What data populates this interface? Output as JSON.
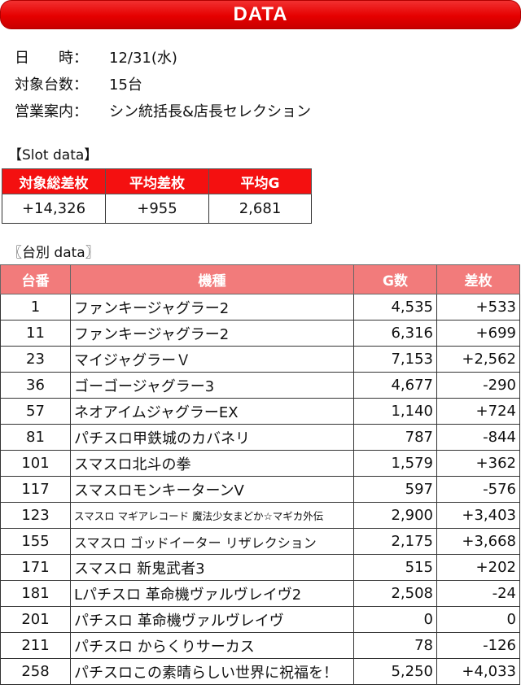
{
  "header": {
    "title": "DATA"
  },
  "info": [
    {
      "label": "日　　時：",
      "value": "12/31(水)"
    },
    {
      "label": "対象台数：",
      "value": "15台"
    },
    {
      "label": "営業案内：",
      "value": "シン統括長&店長セレクション"
    }
  ],
  "slot_section": {
    "title": "【Slot data】",
    "headers": [
      "対象総差枚",
      "平均差枚",
      "平均G"
    ],
    "values": [
      "+14,326",
      "+955",
      "2,681"
    ]
  },
  "machine_section": {
    "title": "〖台別 data〗",
    "headers": [
      "台番",
      "機種",
      "G数",
      "差枚"
    ],
    "rows": [
      [
        "1",
        "ファンキージャグラー2",
        "4,535",
        "+533"
      ],
      [
        "11",
        "ファンキージャグラー2",
        "6,316",
        "+699"
      ],
      [
        "23",
        "マイジャグラーＶ",
        "7,153",
        "+2,562"
      ],
      [
        "36",
        "ゴーゴージャグラー3",
        "4,677",
        "-290"
      ],
      [
        "57",
        "ネオアイムジャグラーEX",
        "1,140",
        "+724"
      ],
      [
        "81",
        "パチスロ甲鉄城のカバネリ",
        "787",
        "-844"
      ],
      [
        "101",
        "スマスロ北斗の拳",
        "1,579",
        "+362"
      ],
      [
        "117",
        "スマスロモンキーターンV",
        "597",
        "-576"
      ],
      [
        "123",
        "スマスロ マギアレコード 魔法少女まどか☆マギカ外伝",
        "2,900",
        "+3,403"
      ],
      [
        "155",
        "スマスロ ゴッドイーター リザレクション",
        "2,175",
        "+3,668"
      ],
      [
        "171",
        "スマスロ 新鬼武者3",
        "515",
        "+202"
      ],
      [
        "181",
        "Lパチスロ 革命機ヴァルヴレイヴ2",
        "2,508",
        "-24"
      ],
      [
        "201",
        "パチスロ 革命機ヴァルヴレイヴ",
        "0",
        "0"
      ],
      [
        "211",
        "パチスロ からくりサーカス",
        "78",
        "-126"
      ],
      [
        "258",
        "パチスロこの素晴らしい世界に祝福を！",
        "5,250",
        "+4,033"
      ]
    ]
  }
}
